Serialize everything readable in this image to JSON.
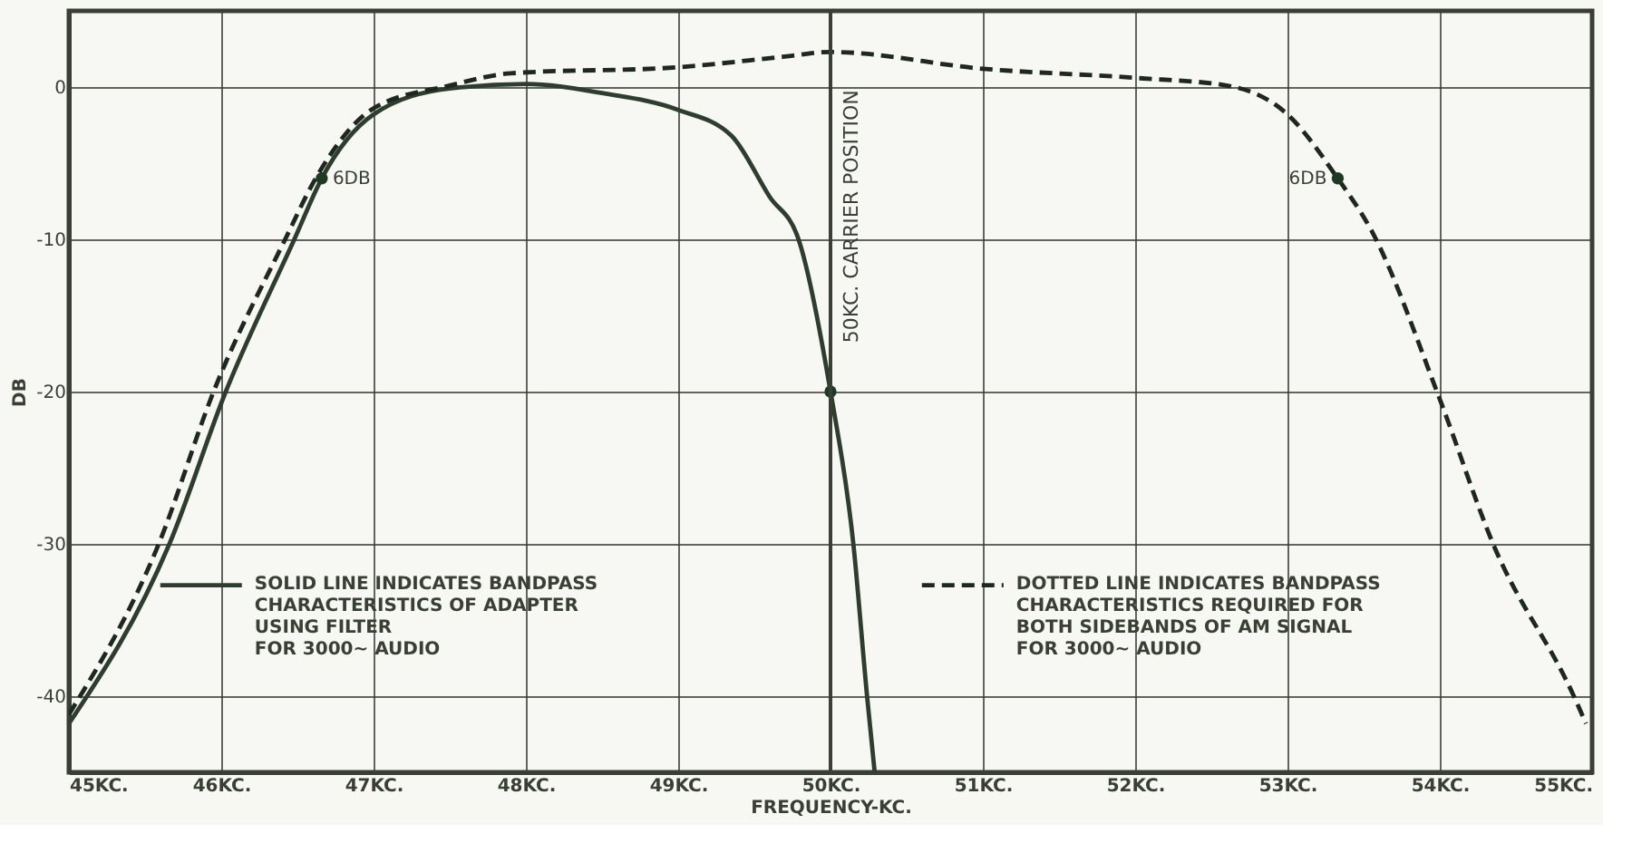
{
  "chart_data": {
    "type": "line",
    "xlabel": "FREQUENCY-KC.",
    "ylabel": "DB",
    "xlim": [
      45,
      55
    ],
    "ylim": [
      -45,
      5
    ],
    "xticks": [
      {
        "value": 45,
        "label": "45KC."
      },
      {
        "value": 46,
        "label": "46KC."
      },
      {
        "value": 47,
        "label": "47KC."
      },
      {
        "value": 48,
        "label": "48KC."
      },
      {
        "value": 49,
        "label": "49KC."
      },
      {
        "value": 50,
        "label": "50KC."
      },
      {
        "value": 51,
        "label": "51KC."
      },
      {
        "value": 52,
        "label": "52KC."
      },
      {
        "value": 53,
        "label": "53KC."
      },
      {
        "value": 54,
        "label": "54KC."
      },
      {
        "value": 55,
        "label": "55KC."
      }
    ],
    "yticks": [
      0,
      -10,
      -20,
      -30,
      -40
    ],
    "grid": true,
    "legend": "bottom",
    "series": [
      {
        "name": "SOLID LINE INDICATES BANDPASS\nCHARACTERISTICS OF ADAPTER\nUSING FILTER\nFOR 3000~ AUDIO",
        "color": "#2f3d2f",
        "line_style": "solid",
        "marker": "none",
        "x": [
          45.0,
          45.66,
          46.03,
          46.48,
          46.66,
          47.0,
          47.5,
          48.0,
          48.5,
          49.0,
          49.35,
          49.6,
          49.79,
          50.0,
          50.15,
          50.24,
          50.29
        ],
        "values": [
          -41.8,
          -30,
          -20,
          -10,
          -6,
          -1.8,
          -0.1,
          0.2,
          -0.4,
          -1.5,
          -3.2,
          -7.2,
          -10,
          -20,
          -30,
          -40,
          -45
        ]
      },
      {
        "name": "DOTTED LINE INDICATES BANDPASS\nCHARACTERISTICS REQUIRED FOR\nBOTH SIDEBANDS OF AM SIGNAL\nFOR 3000~ AUDIO",
        "color": "#1f281f",
        "line_style": "dashed",
        "marker": "none",
        "x": [
          45.0,
          45.59,
          45.95,
          46.42,
          46.62,
          47.0,
          47.5,
          47.9,
          49.0,
          49.7,
          50.0,
          51.0,
          52.0,
          52.6,
          53.0,
          53.33,
          53.55,
          54.0,
          54.35,
          54.88,
          54.96
        ],
        "values": [
          -41.2,
          -30,
          -20,
          -10,
          -6,
          -1.4,
          0.1,
          0.9,
          1.3,
          2.0,
          2.3,
          1.2,
          0.6,
          0.1,
          -1.8,
          -6,
          -9.4,
          -20.5,
          -30,
          -40,
          -41.8
        ]
      },
      {
        "type": "scatter",
        "color": "#1f3a24",
        "marker": "circle",
        "x": [
          46.66,
          50.0,
          53.33
        ],
        "values": [
          -6,
          -20,
          -6
        ]
      }
    ],
    "annotations": [
      {
        "text": "6DB",
        "x": 46.66,
        "y": -6
      },
      {
        "text": "6DB",
        "x": 53.33,
        "y": -6
      }
    ],
    "ref_lines": [
      {
        "axis": "x",
        "value": 50,
        "label": "50KC. CARRIER POSITION",
        "color": "#3a3f35"
      }
    ]
  }
}
